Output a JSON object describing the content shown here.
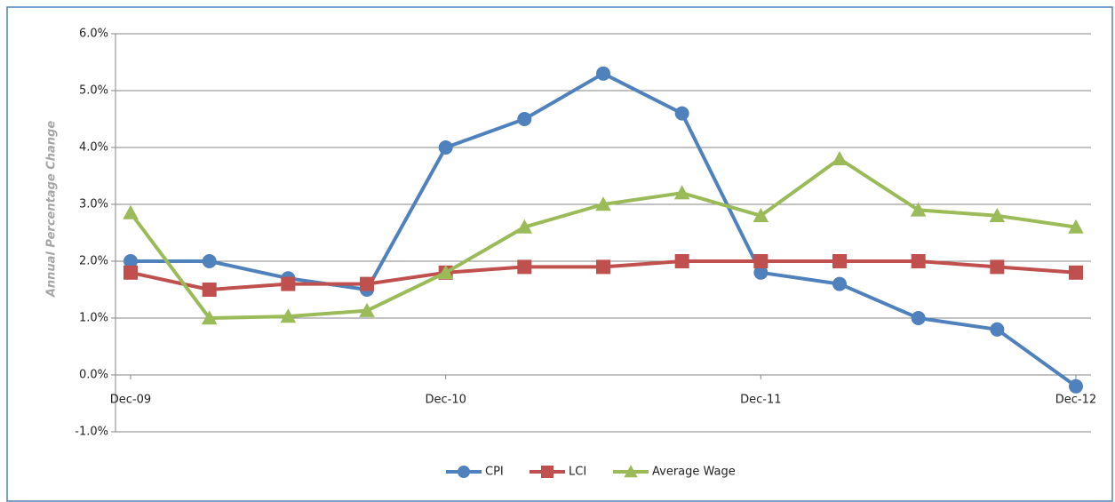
{
  "chart_data": {
    "type": "line",
    "y_label": "Annual Percentage Change",
    "categories": [
      "Dec-09",
      null,
      null,
      null,
      "Dec-10",
      null,
      null,
      null,
      "Dec-11",
      null,
      null,
      null,
      "Dec-12"
    ],
    "series": [
      {
        "name": "CPI",
        "color": "#4f81bd",
        "marker": "circle",
        "values": [
          2.0,
          2.0,
          1.7,
          1.5,
          4.0,
          4.5,
          5.3,
          4.6,
          1.8,
          1.6,
          1.0,
          0.8,
          -0.2
        ]
      },
      {
        "name": "LCI",
        "color": "#c0504d",
        "marker": "square",
        "values": [
          1.8,
          1.5,
          1.6,
          1.6,
          1.8,
          1.9,
          1.9,
          2.0,
          2.0,
          2.0,
          2.0,
          1.9,
          1.8
        ]
      },
      {
        "name": "Average Wage",
        "color": "#9bbb59",
        "marker": "triangle",
        "values": [
          2.85,
          1.0,
          1.03,
          1.13,
          1.8,
          2.6,
          3.0,
          3.2,
          2.8,
          3.8,
          2.9,
          2.8,
          2.6
        ]
      }
    ],
    "ylim": [
      -1,
      6
    ],
    "yticks": [
      {
        "value": -1,
        "label": "-1.0%"
      },
      {
        "value": 0,
        "label": "0.0%"
      },
      {
        "value": 1,
        "label": "1.0%"
      },
      {
        "value": 2,
        "label": "2.0%"
      },
      {
        "value": 3,
        "label": "3.0%"
      },
      {
        "value": 4,
        "label": "4.0%"
      },
      {
        "value": 5,
        "label": "5.0%"
      },
      {
        "value": 6,
        "label": "6.0%"
      }
    ],
    "grid": true,
    "legend": "bottom"
  }
}
